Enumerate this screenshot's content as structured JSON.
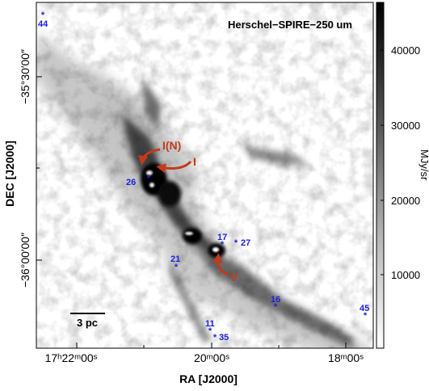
{
  "map_title": "Herschel−SPIRE−250 um",
  "axes": {
    "xlabel": "RA [J2000]",
    "ylabel": "DEC [J2000]",
    "x_ticks": [
      "17ʰ22ᵐ00ˢ",
      "20ᵐ00ˢ",
      "18ᵐ00ˢ"
    ],
    "y_ticks": [
      "−35°30′00″",
      "−36°00′00″"
    ]
  },
  "colorbar": {
    "unit": "MJy/sr",
    "ticks": [
      "40000",
      "30000",
      "20000",
      "10000"
    ],
    "colors": {
      "max": "#000000",
      "min": "#ffffff"
    }
  },
  "scale_bar": {
    "label": "3 pc"
  },
  "regions": [
    {
      "id": "I(N)",
      "label": "I(N)"
    },
    {
      "id": "I",
      "label": "I"
    },
    {
      "id": "V",
      "label": "V"
    }
  ],
  "stars": [
    {
      "id": "44",
      "label": "44"
    },
    {
      "id": "26",
      "label": "26"
    },
    {
      "id": "17",
      "label": "17"
    },
    {
      "id": "27",
      "label": "27"
    },
    {
      "id": "21",
      "label": "21"
    },
    {
      "id": "16",
      "label": "16"
    },
    {
      "id": "45",
      "label": "45"
    },
    {
      "id": "11",
      "label": "11"
    },
    {
      "id": "35",
      "label": "35"
    }
  ],
  "colors": {
    "star": "#1f1fe0",
    "region_arrow": "#c23a1a"
  }
}
